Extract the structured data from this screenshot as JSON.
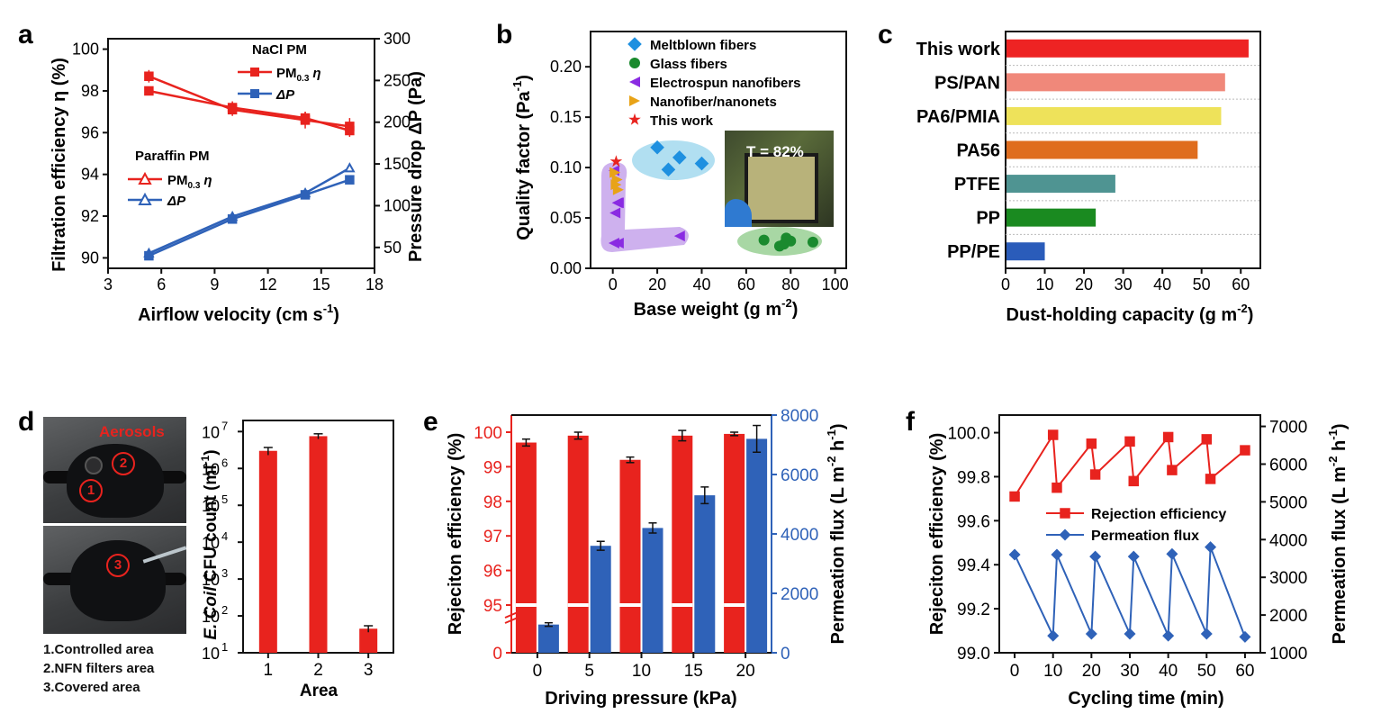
{
  "panels": {
    "a": {
      "label": "a",
      "xlabel": "Airflow velocity (cm s",
      "xlabel_sup": "-1",
      "xlabel_end": ")",
      "ylabel_left": "Filtration efficiency η (%)",
      "ylabel_right": "Pressure drop ΔP (Pa)",
      "legend_nacl_title": "NaCl PM",
      "legend_paraffin_title": "Paraffin PM",
      "legend_pm": "PM",
      "legend_pm_sub": "0.3",
      "legend_eta": "η",
      "legend_dp": "ΔP"
    },
    "b": {
      "label": "b",
      "photo_text": "T = 82%"
    },
    "c": {
      "label": "c"
    },
    "d": {
      "label": "d",
      "aerosols": "Aerosols",
      "markers": [
        "1",
        "2",
        "3"
      ],
      "captions": [
        "1.Controlled area",
        "2.NFN filters area",
        "3.Covered area"
      ],
      "ylabel_italic": "E. Coil",
      "ylabel_rest": " CFU count (ml",
      "ylabel_sup": "-1",
      "ylabel_end": ")"
    },
    "e": {
      "label": "e"
    },
    "f": {
      "label": "f"
    }
  },
  "colors": {
    "red": "#e8231e",
    "blue": "#2f62b8",
    "legend_green_fill": "#9ed39a",
    "legend_blue_fill": "#a8dcef",
    "legend_purple_fill": "#c9a8ec"
  },
  "chart_data": [
    {
      "id": "a",
      "type": "line",
      "x_ticks": [
        3,
        6,
        9,
        12,
        15,
        18
      ],
      "xlim": [
        3,
        18
      ],
      "ylim_left": [
        89.5,
        100.5
      ],
      "y_ticks_left": [
        90,
        92,
        94,
        96,
        98,
        100
      ],
      "ylim_right": [
        25,
        300
      ],
      "y_ticks_right": [
        50,
        100,
        150,
        200,
        250,
        300
      ],
      "series": [
        {
          "name": "NaCl PM PM0.3 η",
          "axis": "left",
          "color": "#e8231e",
          "marker": "square-filled",
          "x": [
            5.3,
            10,
            14.1,
            16.6
          ],
          "y": [
            98.7,
            97.1,
            96.6,
            96.3
          ],
          "err": [
            0.3,
            0.3,
            0.4,
            0.4
          ]
        },
        {
          "name": "NaCl PM ΔP",
          "axis": "left",
          "color": "#e8231e",
          "marker": "square-filled",
          "x": [
            5.3,
            10,
            14.1,
            16.6
          ],
          "y": [
            98.0,
            97.2,
            96.7,
            96.1
          ],
          "err": [
            0.2,
            0.3,
            0.3,
            0.3
          ]
        },
        {
          "name": "Paraffin PM PM0.3 η",
          "axis": "right",
          "color": "#2f62b8",
          "marker": "triangle-open",
          "x": [
            5.3,
            10,
            14.1,
            16.6
          ],
          "y": [
            43,
            87,
            115,
            145
          ],
          "err": [
            3,
            4,
            3,
            3
          ]
        },
        {
          "name": "Paraffin PM ΔP",
          "axis": "right",
          "color": "#2f62b8",
          "marker": "square-filled",
          "x": [
            5.3,
            10,
            14.1,
            16.6
          ],
          "y": [
            40,
            84,
            113,
            131
          ],
          "err": [
            3,
            3,
            3,
            3
          ]
        }
      ]
    },
    {
      "id": "b",
      "type": "scatter",
      "xlabel": "Base weight (g m",
      "xlabel_sup": "-2",
      "xlabel_end": ")",
      "ylabel": "Quality factor (Pa",
      "ylabel_sup": "-1",
      "ylabel_end": ")",
      "xlim": [
        -10,
        105
      ],
      "x_ticks": [
        0,
        20,
        40,
        60,
        80,
        100
      ],
      "ylim": [
        0,
        0.235
      ],
      "y_ticks": [
        0.0,
        0.05,
        0.1,
        0.15,
        0.2
      ],
      "series": [
        {
          "name": "Meltblown fibers",
          "color": "#1e90e0",
          "marker": "diamond",
          "x": [
            20,
            25,
            30,
            40
          ],
          "y": [
            0.12,
            0.098,
            0.11,
            0.104
          ]
        },
        {
          "name": "Glass fibers",
          "color": "#1a8a2e",
          "marker": "circle",
          "x": [
            68,
            75,
            78,
            80,
            77,
            90
          ],
          "y": [
            0.028,
            0.022,
            0.03,
            0.027,
            0.024,
            0.026
          ]
        },
        {
          "name": "Electrospun nanofibers",
          "color": "#8a2be2",
          "marker": "triangle-left",
          "x": [
            0.5,
            2,
            1,
            2.5,
            0.5,
            2.5,
            30
          ],
          "y": [
            0.097,
            0.065,
            0.055,
            0.065,
            0.025,
            0.025,
            0.032
          ]
        },
        {
          "name": "Nanofiber/nanonets",
          "color": "#e8a317",
          "marker": "triangle-right",
          "x": [
            1,
            2,
            1.5,
            2.5
          ],
          "y": [
            0.095,
            0.088,
            0.083,
            0.078
          ]
        },
        {
          "name": "This work",
          "color": "#e8231e",
          "marker": "star",
          "x": [
            1.5
          ],
          "y": [
            0.106
          ]
        }
      ]
    },
    {
      "id": "c",
      "type": "bar",
      "orientation": "horizontal",
      "xlabel": "Dust-holding capacity (g m",
      "xlabel_sup": "-2",
      "xlabel_end": ")",
      "xlim": [
        0,
        65
      ],
      "x_ticks": [
        0,
        10,
        20,
        30,
        40,
        50,
        60
      ],
      "categories": [
        "This work",
        "PS/PAN",
        "PA6/PMIA",
        "PA56",
        "PTFE",
        "PP",
        "PP/PE"
      ],
      "values": [
        62,
        56,
        55,
        49,
        28,
        23,
        10
      ],
      "colors": [
        "#ee2323",
        "#f0887a",
        "#eee25a",
        "#df6d1e",
        "#4f9492",
        "#1a8a20",
        "#2a5cba"
      ]
    },
    {
      "id": "d",
      "type": "bar",
      "xlabel": "Area",
      "categories": [
        "1",
        "2",
        "3"
      ],
      "values": [
        3000000,
        7500000,
        45
      ],
      "err": [
        700000,
        1200000,
        9
      ],
      "scale": "log",
      "ylim": [
        10,
        20000000
      ],
      "y_ticks_base": "10",
      "y_ticks_exp": [
        "1",
        "2",
        "3",
        "4",
        "5",
        "6",
        "7"
      ],
      "color": "#e8231e"
    },
    {
      "id": "e",
      "type": "bar",
      "xlabel": "Driving pressure (kPa)",
      "ylabel_left": "Rejeciton efficiency (%)",
      "ylabel_right": "Permeation flux (L m",
      "ylabel_right_sup": "-2",
      "ylabel_right_mid": " h",
      "ylabel_right_sup2": "-1",
      "ylabel_right_end": ")",
      "categories": [
        "0",
        "5",
        "10",
        "15",
        "20"
      ],
      "series": [
        {
          "name": "Rejeciton efficiency",
          "axis": "left",
          "color": "#e8231e",
          "values": [
            99.7,
            99.9,
            99.2,
            99.9,
            99.95
          ],
          "err": [
            0.1,
            0.1,
            0.08,
            0.15,
            0.05
          ]
        },
        {
          "name": "Permeation flux",
          "axis": "right",
          "color": "#2f62b8",
          "values": [
            950,
            3600,
            4200,
            5300,
            7200
          ],
          "err": [
            60,
            150,
            170,
            280,
            450
          ]
        }
      ],
      "y_ticks_left": [
        "0",
        "95",
        "96",
        "97",
        "98",
        "99",
        "100"
      ],
      "ylim_right": [
        0,
        8000
      ],
      "y_ticks_right": [
        0,
        2000,
        4000,
        6000,
        8000
      ]
    },
    {
      "id": "f",
      "type": "line",
      "xlabel": "Cycling time (min)",
      "ylabel_left": "Rejeciton efficiency (%)",
      "ylabel_right": "Permeation flux (L m",
      "ylabel_right_sup": "-2",
      "ylabel_right_mid": " h",
      "ylabel_right_sup2": "-1",
      "ylabel_right_end": ")",
      "xlim": [
        -4,
        64
      ],
      "x_ticks": [
        0,
        10,
        20,
        30,
        40,
        50,
        60
      ],
      "ylim_left": [
        99.0,
        100.08
      ],
      "y_ticks_left": [
        "99.0",
        "99.2",
        "99.4",
        "99.6",
        "99.8",
        "100.0"
      ],
      "ylim_right": [
        1000,
        7300
      ],
      "y_ticks_right": [
        1000,
        2000,
        3000,
        4000,
        5000,
        6000,
        7000
      ],
      "series": [
        {
          "name": "Rejection efficiency",
          "axis": "left",
          "color": "#e8231e",
          "marker": "square",
          "x": [
            0,
            10,
            11,
            20,
            21,
            30,
            31,
            40,
            41,
            50,
            51,
            60
          ],
          "y": [
            99.71,
            99.99,
            99.75,
            99.95,
            99.81,
            99.96,
            99.78,
            99.98,
            99.83,
            99.97,
            99.79,
            99.92
          ]
        },
        {
          "name": "Permeation flux",
          "axis": "right",
          "color": "#2f62b8",
          "marker": "diamond",
          "x": [
            0,
            10,
            11,
            20,
            21,
            30,
            31,
            40,
            41,
            50,
            51,
            60
          ],
          "y": [
            3600,
            1450,
            3600,
            1500,
            3550,
            1500,
            3550,
            1450,
            3620,
            1500,
            3800,
            1420
          ]
        }
      ]
    }
  ]
}
